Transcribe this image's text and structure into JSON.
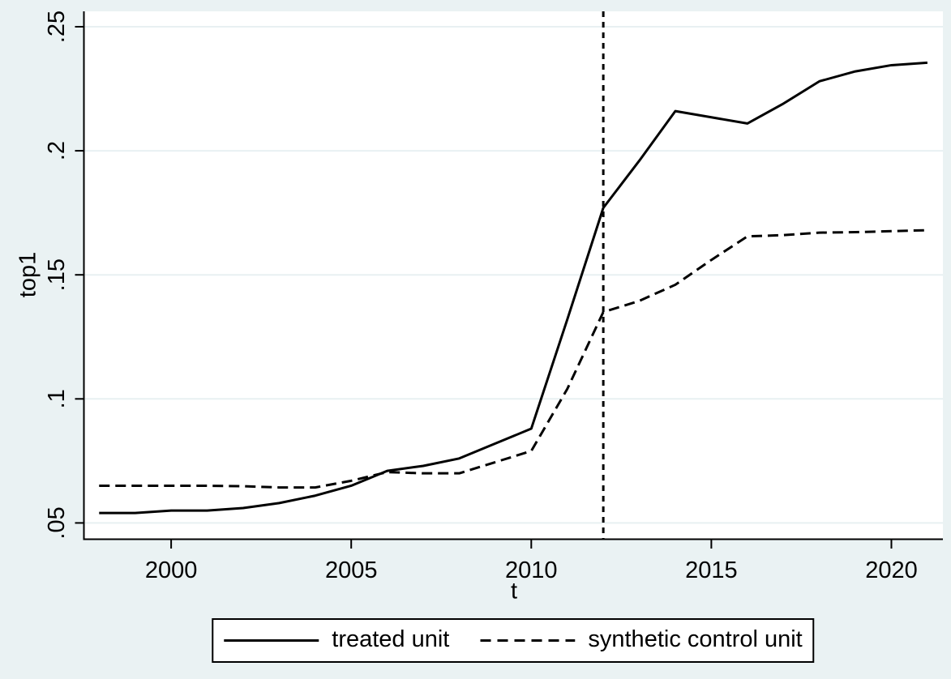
{
  "chart_data": {
    "type": "line",
    "title": "",
    "xlabel": "t",
    "ylabel": "top1",
    "grid": "horizontal",
    "legend_position": "bottom",
    "colors": {
      "background": "#EAF2F3",
      "plot_background": "#FFFFFF",
      "gridline": "#E8F0F2",
      "line": "#000000"
    },
    "x": [
      1998,
      1999,
      2000,
      2001,
      2002,
      2003,
      2004,
      2005,
      2006,
      2007,
      2008,
      2009,
      2010,
      2011,
      2012,
      2013,
      2014,
      2015,
      2016,
      2017,
      2018,
      2019,
      2020,
      2021
    ],
    "series": [
      {
        "name": "treated unit",
        "style": "solid",
        "color": "#000000",
        "values": [
          0.054,
          0.054,
          0.055,
          0.055,
          0.056,
          0.058,
          0.061,
          0.065,
          0.071,
          0.073,
          0.076,
          0.082,
          0.088,
          0.132,
          0.177,
          0.196,
          0.216,
          0.2135,
          0.211,
          0.219,
          0.228,
          0.232,
          0.2345,
          0.2355
        ]
      },
      {
        "name": "synthetic control unit",
        "style": "dashed",
        "color": "#000000",
        "values": [
          0.065,
          0.065,
          0.065,
          0.065,
          0.0648,
          0.0643,
          0.0643,
          0.067,
          0.0705,
          0.07,
          0.07,
          0.0745,
          0.079,
          0.104,
          0.135,
          0.1395,
          0.146,
          0.156,
          0.1655,
          0.166,
          0.167,
          0.1672,
          0.1676,
          0.168
        ]
      }
    ],
    "vline": {
      "x": 2012,
      "style": "dashed",
      "color": "#000000"
    },
    "x_axis": {
      "range": [
        1997.6,
        2021.43
      ],
      "ticks": [
        {
          "v": 2000,
          "label": "2000"
        },
        {
          "v": 2005,
          "label": "2005"
        },
        {
          "v": 2010,
          "label": "2010"
        },
        {
          "v": 2015,
          "label": "2015"
        },
        {
          "v": 2020,
          "label": "2020"
        }
      ]
    },
    "y_axis": {
      "range": [
        0.0436,
        0.2562
      ],
      "ticks": [
        {
          "v": 0.05,
          "label": ".05"
        },
        {
          "v": 0.1,
          "label": ".1"
        },
        {
          "v": 0.15,
          "label": ".15"
        },
        {
          "v": 0.2,
          "label": ".2"
        },
        {
          "v": 0.25,
          "label": ".25"
        }
      ]
    }
  }
}
